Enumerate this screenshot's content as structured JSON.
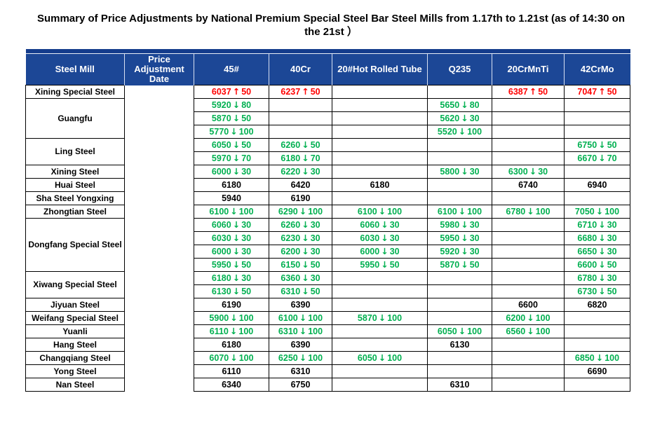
{
  "title": "Summary of Price Adjustments by National Premium Special Steel Bar Steel Mills from 1.17th  to 1.21st (as of 14:30 on the 21st ）",
  "colors": {
    "header_bg": "#1C4796",
    "strip_bg": "#143C8C",
    "header_text": "#FFFFFF",
    "up": "#FF0000",
    "down": "#00B050",
    "text": "#000000"
  },
  "icons": {
    "up": "↑",
    "down": "↓"
  },
  "table": {
    "columns": [
      "Steel Mill",
      "Price Adjustment Date",
      "45#",
      "40Cr",
      "20#Hot Rolled Tube",
      "Q235",
      "20CrMnTi",
      "42CrMo"
    ],
    "price_columns": [
      "45#",
      "40Cr",
      "20#Hot Rolled Tube",
      "Q235",
      "20CrMnTi",
      "42CrMo"
    ],
    "mills": [
      {
        "name": "Xining Special Steel",
        "rows": [
          [
            {
              "p": "6037",
              "d": "up",
              "c": "50"
            },
            {
              "p": "6237",
              "d": "up",
              "c": "50"
            },
            null,
            null,
            {
              "p": "6387",
              "d": "up",
              "c": "50"
            },
            {
              "p": "7047",
              "d": "up",
              "c": "50"
            }
          ]
        ]
      },
      {
        "name": "Guangfu",
        "rows": [
          [
            {
              "p": "5920",
              "d": "down",
              "c": "80"
            },
            null,
            null,
            {
              "p": "5650",
              "d": "down",
              "c": "80"
            },
            null,
            null
          ],
          [
            {
              "p": "5870",
              "d": "down",
              "c": "50"
            },
            null,
            null,
            {
              "p": "5620",
              "d": "down",
              "c": "30"
            },
            null,
            null
          ],
          [
            {
              "p": "5770",
              "d": "down",
              "c": "100"
            },
            null,
            null,
            {
              "p": "5520",
              "d": "down",
              "c": "100"
            },
            null,
            null
          ]
        ]
      },
      {
        "name": "Ling Steel",
        "rows": [
          [
            {
              "p": "6050",
              "d": "down",
              "c": "50"
            },
            {
              "p": "6260",
              "d": "down",
              "c": "50"
            },
            null,
            null,
            null,
            {
              "p": "6750",
              "d": "down",
              "c": "50"
            }
          ],
          [
            {
              "p": "5970",
              "d": "down",
              "c": "70"
            },
            {
              "p": "6180",
              "d": "down",
              "c": "70"
            },
            null,
            null,
            null,
            {
              "p": "6670",
              "d": "down",
              "c": "70"
            }
          ]
        ]
      },
      {
        "name": "Xining Steel",
        "rows": [
          [
            {
              "p": "6000",
              "d": "down",
              "c": "30"
            },
            {
              "p": "6220",
              "d": "down",
              "c": "30"
            },
            null,
            {
              "p": "5800",
              "d": "down",
              "c": "30"
            },
            {
              "p": "6300",
              "d": "down",
              "c": "30"
            },
            null
          ]
        ]
      },
      {
        "name": "Huai Steel",
        "rows": [
          [
            {
              "p": "6180"
            },
            {
              "p": "6420"
            },
            {
              "p": "6180"
            },
            null,
            {
              "p": "6740"
            },
            {
              "p": "6940"
            }
          ]
        ]
      },
      {
        "name": "Sha Steel Yongxing",
        "rows": [
          [
            {
              "p": "5940"
            },
            {
              "p": "6190"
            },
            null,
            null,
            null,
            null
          ]
        ]
      },
      {
        "name": "Zhongtian Steel",
        "rows": [
          [
            {
              "p": "6100",
              "d": "down",
              "c": "100"
            },
            {
              "p": "6290",
              "d": "down",
              "c": "100"
            },
            {
              "p": "6100",
              "d": "down",
              "c": "100"
            },
            {
              "p": "6100",
              "d": "down",
              "c": "100"
            },
            {
              "p": "6780",
              "d": "down",
              "c": "100"
            },
            {
              "p": "7050",
              "d": "down",
              "c": "100"
            }
          ]
        ]
      },
      {
        "name": "Dongfang Special Steel",
        "rows": [
          [
            {
              "p": "6060",
              "d": "down",
              "c": "30"
            },
            {
              "p": "6260",
              "d": "down",
              "c": "30"
            },
            {
              "p": "6060",
              "d": "down",
              "c": "30"
            },
            {
              "p": "5980",
              "d": "down",
              "c": "30"
            },
            null,
            {
              "p": "6710",
              "d": "down",
              "c": "30"
            }
          ],
          [
            {
              "p": "6030",
              "d": "down",
              "c": "30"
            },
            {
              "p": "6230",
              "d": "down",
              "c": "30"
            },
            {
              "p": "6030",
              "d": "down",
              "c": "30"
            },
            {
              "p": "5950",
              "d": "down",
              "c": "30"
            },
            null,
            {
              "p": "6680",
              "d": "down",
              "c": "30"
            }
          ],
          [
            {
              "p": "6000",
              "d": "down",
              "c": "30"
            },
            {
              "p": "6200",
              "d": "down",
              "c": "30"
            },
            {
              "p": "6000",
              "d": "down",
              "c": "30"
            },
            {
              "p": "5920",
              "d": "down",
              "c": "30"
            },
            null,
            {
              "p": "6650",
              "d": "down",
              "c": "30"
            }
          ],
          [
            {
              "p": "5950",
              "d": "down",
              "c": "50"
            },
            {
              "p": "6150",
              "d": "down",
              "c": "50"
            },
            {
              "p": "5950",
              "d": "down",
              "c": "50"
            },
            {
              "p": "5870",
              "d": "down",
              "c": "50"
            },
            null,
            {
              "p": "6600",
              "d": "down",
              "c": "50"
            }
          ]
        ]
      },
      {
        "name": "Xiwang Special Steel",
        "rows": [
          [
            {
              "p": "6180",
              "d": "down",
              "c": "30"
            },
            {
              "p": "6360",
              "d": "down",
              "c": "30"
            },
            null,
            null,
            null,
            {
              "p": "6780",
              "d": "down",
              "c": "30"
            }
          ],
          [
            {
              "p": "6130",
              "d": "down",
              "c": "50"
            },
            {
              "p": "6310",
              "d": "down",
              "c": "50"
            },
            null,
            null,
            null,
            {
              "p": "6730",
              "d": "down",
              "c": "50"
            }
          ]
        ]
      },
      {
        "name": "Jiyuan Steel",
        "rows": [
          [
            {
              "p": "6190"
            },
            {
              "p": "6390"
            },
            null,
            null,
            {
              "p": "6600"
            },
            {
              "p": "6820"
            }
          ]
        ]
      },
      {
        "name": "Weifang Special Steel",
        "rows": [
          [
            {
              "p": "5900",
              "d": "down",
              "c": "100"
            },
            {
              "p": "6100",
              "d": "down",
              "c": "100"
            },
            {
              "p": "5870",
              "d": "down",
              "c": "100"
            },
            null,
            {
              "p": "6200",
              "d": "down",
              "c": "100"
            },
            null
          ]
        ]
      },
      {
        "name": "Yuanli",
        "rows": [
          [
            {
              "p": "6110",
              "d": "down",
              "c": "100"
            },
            {
              "p": "6310",
              "d": "down",
              "c": "100"
            },
            null,
            {
              "p": "6050",
              "d": "down",
              "c": "100"
            },
            {
              "p": "6560",
              "d": "down",
              "c": "100"
            },
            null
          ]
        ]
      },
      {
        "name": "Hang Steel",
        "rows": [
          [
            {
              "p": "6180"
            },
            {
              "p": "6390"
            },
            null,
            {
              "p": "6130"
            },
            null,
            null
          ]
        ]
      },
      {
        "name": "Changqiang Steel",
        "rows": [
          [
            {
              "p": "6070",
              "d": "down",
              "c": "100"
            },
            {
              "p": "6250",
              "d": "down",
              "c": "100"
            },
            {
              "p": "6050",
              "d": "down",
              "c": "100"
            },
            null,
            null,
            {
              "p": "6850",
              "d": "down",
              "c": "100"
            }
          ]
        ]
      },
      {
        "name": "Yong Steel",
        "rows": [
          [
            {
              "p": "6110"
            },
            {
              "p": "6310"
            },
            null,
            null,
            null,
            {
              "p": "6690"
            }
          ]
        ]
      },
      {
        "name": "Nan Steel",
        "rows": [
          [
            {
              "p": "6340"
            },
            {
              "p": "6750"
            },
            null,
            {
              "p": "6310"
            },
            null,
            null
          ]
        ]
      }
    ]
  }
}
